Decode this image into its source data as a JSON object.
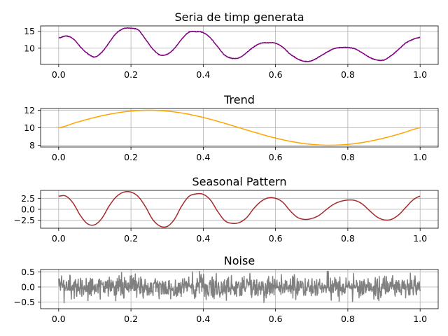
{
  "chart_data": [
    {
      "type": "line",
      "title": "Seria de timp generata",
      "color": "#800080",
      "noise_amplitude": 0.25,
      "x": [
        0.0,
        0.02,
        0.04,
        0.06,
        0.08,
        0.1,
        0.12,
        0.14,
        0.16,
        0.18,
        0.2,
        0.22,
        0.24,
        0.26,
        0.28,
        0.3,
        0.32,
        0.34,
        0.36,
        0.38,
        0.4,
        0.42,
        0.44,
        0.46,
        0.48,
        0.5,
        0.52,
        0.54,
        0.56,
        0.58,
        0.6,
        0.62,
        0.64,
        0.66,
        0.68,
        0.7,
        0.72,
        0.74,
        0.76,
        0.78,
        0.8,
        0.82,
        0.84,
        0.86,
        0.88,
        0.9,
        0.92,
        0.94,
        0.96,
        0.98,
        1.0
      ],
      "values": [
        13.0,
        13.6,
        12.8,
        10.4,
        8.4,
        7.4,
        8.9,
        11.7,
        14.5,
        15.8,
        15.9,
        15.4,
        12.7,
        9.8,
        8.0,
        8.2,
        9.9,
        12.6,
        14.7,
        14.9,
        14.6,
        13.0,
        10.4,
        7.9,
        7.0,
        7.2,
        8.7,
        10.4,
        11.5,
        11.6,
        11.5,
        10.3,
        8.3,
        6.9,
        6.1,
        6.3,
        7.4,
        8.7,
        9.8,
        10.2,
        10.2,
        9.8,
        8.6,
        7.3,
        6.5,
        6.5,
        7.8,
        9.6,
        11.5,
        12.6,
        13.2
      ],
      "xlim": [
        -0.05,
        1.05
      ],
      "ylim": [
        5.2,
        16.6
      ],
      "xticks": [
        "0.0",
        "0.2",
        "0.4",
        "0.6",
        "0.8",
        "1.0"
      ],
      "yticks": [
        "10",
        "15"
      ],
      "ytick_values": [
        10,
        15
      ],
      "grid": true
    },
    {
      "type": "line",
      "title": "Trend",
      "color": "#ffa500",
      "x": [
        0.0,
        0.05,
        0.1,
        0.15,
        0.2,
        0.25,
        0.3,
        0.35,
        0.4,
        0.45,
        0.5,
        0.55,
        0.6,
        0.65,
        0.7,
        0.75,
        0.8,
        0.85,
        0.9,
        0.95,
        1.0
      ],
      "values": [
        10.0,
        10.62,
        11.18,
        11.62,
        11.9,
        12.0,
        11.9,
        11.62,
        11.18,
        10.62,
        10.0,
        9.38,
        8.82,
        8.38,
        8.1,
        8.0,
        8.1,
        8.38,
        8.82,
        9.38,
        10.0
      ],
      "xlim": [
        -0.05,
        1.05
      ],
      "ylim": [
        7.8,
        12.2
      ],
      "xticks": [
        "0.0",
        "0.2",
        "0.4",
        "0.6",
        "0.8",
        "1.0"
      ],
      "yticks": [
        "8",
        "10",
        "12"
      ],
      "ytick_values": [
        8,
        10,
        12
      ],
      "grid": true
    },
    {
      "type": "line",
      "title": "Seasonal Pattern",
      "color": "#a52a2a",
      "x": [
        0.0,
        0.02,
        0.04,
        0.06,
        0.08,
        0.1,
        0.12,
        0.14,
        0.16,
        0.18,
        0.2,
        0.22,
        0.24,
        0.26,
        0.28,
        0.3,
        0.32,
        0.34,
        0.36,
        0.38,
        0.4,
        0.42,
        0.44,
        0.46,
        0.48,
        0.5,
        0.52,
        0.54,
        0.56,
        0.58,
        0.6,
        0.62,
        0.64,
        0.66,
        0.68,
        0.7,
        0.72,
        0.74,
        0.76,
        0.78,
        0.8,
        0.82,
        0.84,
        0.86,
        0.88,
        0.9,
        0.92,
        0.94,
        0.96,
        0.98,
        1.0
      ],
      "values": [
        3.0,
        3.0,
        1.4,
        -1.4,
        -3.3,
        -3.5,
        -2.0,
        0.8,
        2.9,
        3.9,
        3.9,
        2.9,
        0.6,
        -2.3,
        -3.8,
        -3.9,
        -2.3,
        0.7,
        2.9,
        3.5,
        3.4,
        2.1,
        -0.5,
        -2.6,
        -3.2,
        -3.0,
        -1.9,
        0.2,
        1.8,
        2.6,
        2.5,
        1.6,
        -0.3,
        -1.8,
        -2.3,
        -2.1,
        -1.4,
        -0.1,
        1.1,
        1.8,
        2.1,
        2.0,
        1.2,
        -0.3,
        -1.7,
        -2.4,
        -2.3,
        -1.3,
        0.4,
        2.1,
        3.0
      ],
      "xlim": [
        -0.05,
        1.05
      ],
      "ylim": [
        -4.3,
        4.3
      ],
      "xticks": [
        "0.0",
        "0.2",
        "0.4",
        "0.6",
        "0.8",
        "1.0"
      ],
      "yticks": [
        "−2.5",
        "0.0",
        "2.5"
      ],
      "ytick_values": [
        -2.5,
        0.0,
        2.5
      ],
      "grid": true
    },
    {
      "type": "line",
      "title": "Noise",
      "color": "#808080",
      "noise_amplitude": 0.25,
      "x_range": [
        0.0,
        1.0
      ],
      "xlim": [
        -0.05,
        1.05
      ],
      "ylim": [
        -0.72,
        0.58
      ],
      "xticks": [
        "0.0",
        "0.2",
        "0.4",
        "0.6",
        "0.8",
        "1.0"
      ],
      "yticks": [
        "−0.5",
        "0.0",
        "0.5"
      ],
      "ytick_values": [
        -0.5,
        0.0,
        0.5
      ],
      "grid": true
    }
  ]
}
